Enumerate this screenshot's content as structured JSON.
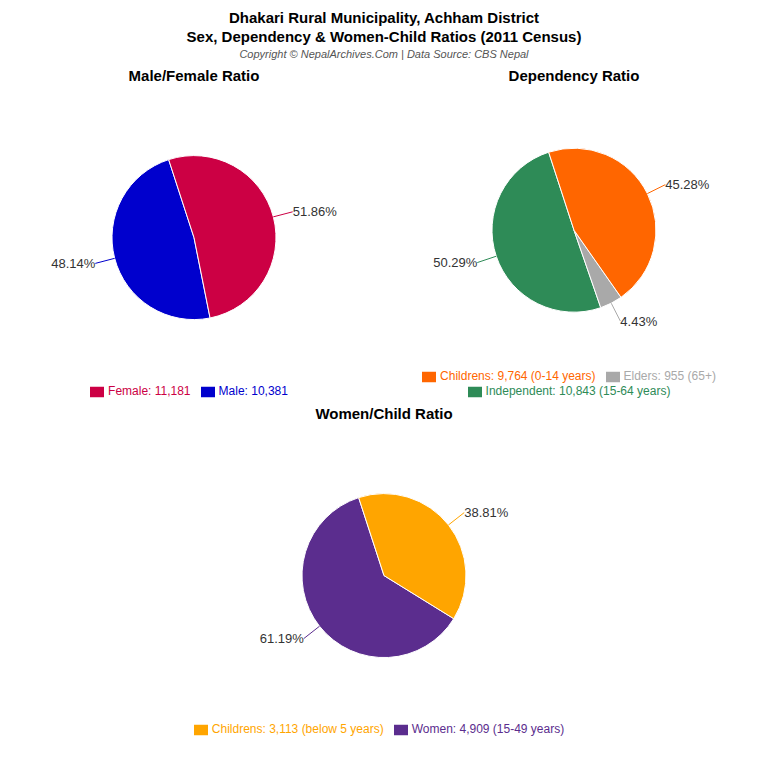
{
  "title": "Dhakari Rural Municipality, Achham District",
  "subtitle": "Sex, Dependency & Women-Child Ratios (2011 Census)",
  "annotations": [
    "Copyright © NepalArchives.Com | Data Source: CBS Nepal"
  ],
  "chart_data": [
    {
      "type": "pie",
      "title": "Male/Female Ratio",
      "categories": [
        "Male: 10,381",
        "Female: 11,181"
      ],
      "values": [
        48.14,
        51.86
      ],
      "value_labels": [
        "48.14%",
        "51.86%"
      ],
      "colors": [
        "#0000CD",
        "#CC0044"
      ],
      "data_labels": true,
      "legend": "bottom"
    },
    {
      "type": "pie",
      "title": "Dependency Ratio",
      "categories": [
        "Independent: 10,843 (15-64 years)",
        "Elders: 955 (65+)",
        "Childrens: 9,764 (0-14 years)"
      ],
      "values": [
        50.29,
        4.43,
        45.28
      ],
      "value_labels": [
        "50.29%",
        "4.43%",
        "45.28%"
      ],
      "colors": [
        "#2E8B57",
        "#A9A9A9",
        "#FF6600"
      ],
      "data_labels": true,
      "legend": "bottom"
    },
    {
      "type": "pie",
      "title": "Women/Child Ratio",
      "categories": [
        "Women: 4,909 (15-49 years)",
        "Childrens: 3,113 (below 5 years)"
      ],
      "values": [
        61.19,
        38.81
      ],
      "value_labels": [
        "61.19%",
        "38.81%"
      ],
      "colors": [
        "#5B2D8E",
        "#FFA500"
      ],
      "data_labels": true,
      "legend": "bottom"
    }
  ]
}
